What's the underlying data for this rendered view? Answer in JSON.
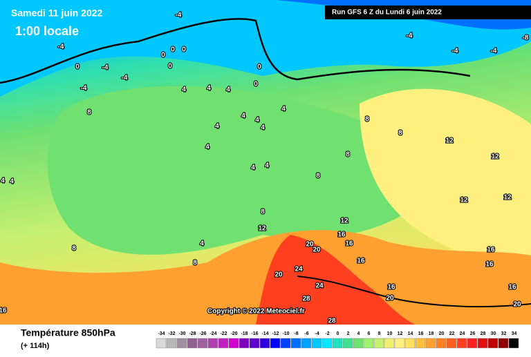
{
  "header": {
    "date": "Samedi 11 juin 2022",
    "time": "1:00 locale",
    "run": "Run GFS 6 Z du Lundi 6 juin 2022"
  },
  "copyright": "Copyright © 2022 Meteociel.fr",
  "footer": {
    "title": "Température 850hPa",
    "lead": "(+ 114h)"
  },
  "scale": {
    "ticks": [
      -34,
      -32,
      -30,
      -28,
      -26,
      -24,
      -22,
      -20,
      -18,
      -16,
      -14,
      -12,
      -10,
      -8,
      -6,
      -4,
      -2,
      0,
      2,
      4,
      6,
      8,
      10,
      12,
      14,
      16,
      18,
      20,
      22,
      24,
      26,
      28,
      30,
      32,
      34
    ],
    "colors": [
      "#d8d8d8",
      "#b8b8b8",
      "#a090a0",
      "#906090",
      "#a060a0",
      "#b040b0",
      "#c020c0",
      "#d000d0",
      "#8000c0",
      "#6000d0",
      "#3000e0",
      "#0000ff",
      "#0040ff",
      "#0070ff",
      "#00a0ff",
      "#00c8ff",
      "#00e8ff",
      "#20e0c0",
      "#40e090",
      "#70e070",
      "#a0f070",
      "#c8f070",
      "#f0f070",
      "#fff080",
      "#ffe060",
      "#ffc040",
      "#ffa030",
      "#ff8020",
      "#ff6020",
      "#ff4020",
      "#ff2020",
      "#e01010",
      "#c00000",
      "#900000",
      "#000000"
    ]
  },
  "map": {
    "labels": [
      "-4",
      "-4",
      "-4",
      "-4",
      "-4",
      "0",
      "0",
      "0",
      "0",
      "0",
      "0",
      "0",
      "-4",
      "-4",
      "-4",
      "-8",
      "4",
      "4",
      "4",
      "8",
      "4",
      "4",
      "4",
      "4",
      "4",
      "4",
      "4",
      "4",
      "8",
      "8",
      "8",
      "12",
      "12",
      "8",
      "12",
      "12",
      "8",
      "12",
      "8",
      "4",
      "8",
      "12",
      "16",
      "20",
      "20",
      "16",
      "16",
      "24",
      "20",
      "24",
      "16",
      "20",
      "28",
      "28",
      "16",
      "16",
      "16",
      "16",
      "20",
      "4",
      "4"
    ]
  }
}
